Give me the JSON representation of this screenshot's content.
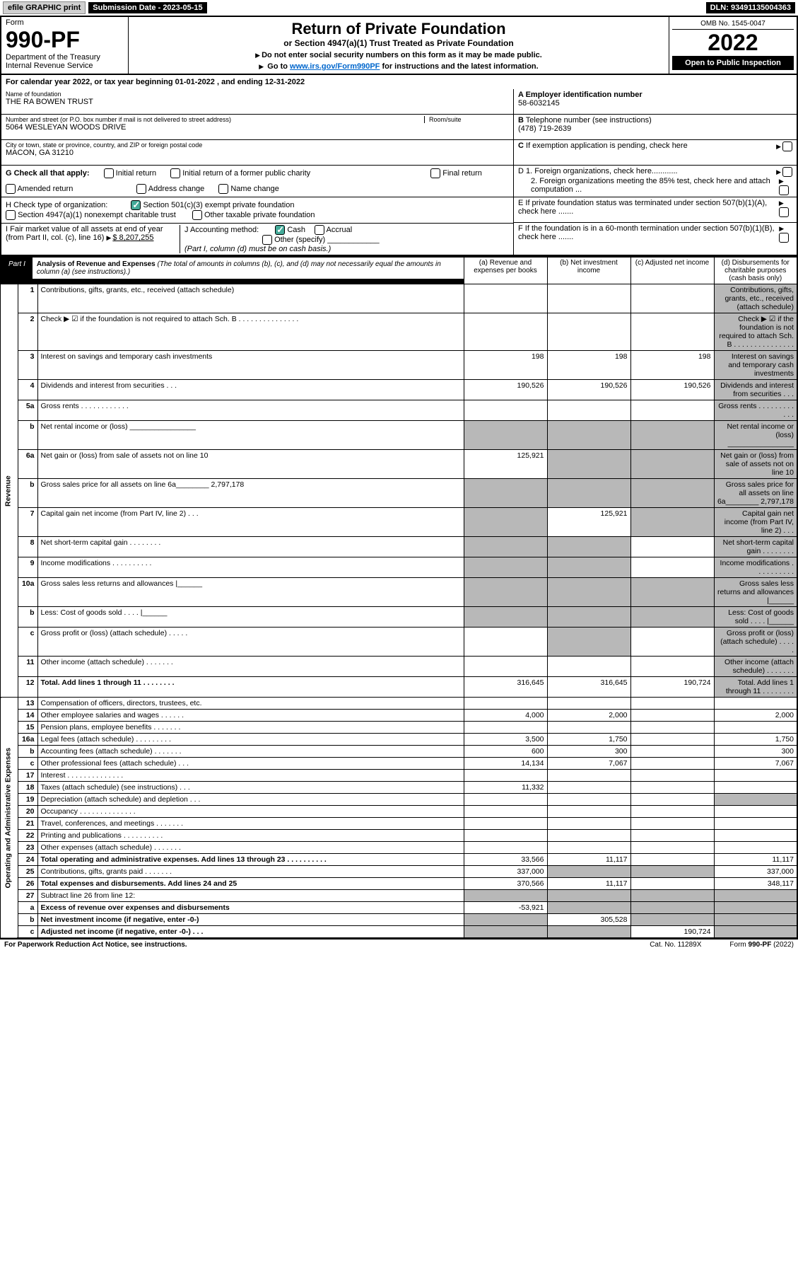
{
  "topbar": {
    "efile": "efile GRAPHIC print",
    "submission": "Submission Date - 2023-05-15",
    "dln": "DLN: 93491135004363"
  },
  "header": {
    "form_label": "Form",
    "form_no": "990-PF",
    "dept": "Department of the Treasury",
    "irs": "Internal Revenue Service",
    "title": "Return of Private Foundation",
    "subtitle": "or Section 4947(a)(1) Trust Treated as Private Foundation",
    "instr1": "Do not enter social security numbers on this form as it may be made public.",
    "instr2_pre": "Go to ",
    "instr2_link": "www.irs.gov/Form990PF",
    "instr2_post": " for instructions and the latest information.",
    "omb": "OMB No. 1545-0047",
    "year": "2022",
    "open": "Open to Public Inspection"
  },
  "calyear": "For calendar year 2022, or tax year beginning 01-01-2022                       , and ending 12-31-2022",
  "info": {
    "name_label": "Name of foundation",
    "name": "THE RA BOWEN TRUST",
    "addr_label": "Number and street (or P.O. box number if mail is not delivered to street address)",
    "addr": "5064 WESLEYAN WOODS DRIVE",
    "room_label": "Room/suite",
    "city_label": "City or town, state or province, country, and ZIP or foreign postal code",
    "city": "MACON, GA  31210",
    "ein_label": "A Employer identification number",
    "ein": "58-6032145",
    "tel_label": "B Telephone number (see instructions)",
    "tel": "(478) 719-2639",
    "c": "C If exemption application is pending, check here",
    "d1": "D 1. Foreign organizations, check here............",
    "d2": "2. Foreign organizations meeting the 85% test, check here and attach computation ...",
    "e": "E  If private foundation status was terminated under section 507(b)(1)(A), check here .......",
    "f": "F  If the foundation is in a 60-month termination under section 507(b)(1)(B), check here .......",
    "g_label": "G Check all that apply:",
    "g_opts": [
      "Initial return",
      "Initial return of a former public charity",
      "Final return",
      "Amended return",
      "Address change",
      "Name change"
    ],
    "h_label": "H Check type of organization:",
    "h_opts": [
      "Section 501(c)(3) exempt private foundation",
      "Section 4947(a)(1) nonexempt charitable trust",
      "Other taxable private foundation"
    ],
    "i_label": "I Fair market value of all assets at end of year (from Part II, col. (c), line 16)",
    "i_val": "$  8,207,255",
    "j_label": "J Accounting method:",
    "j_opts": [
      "Cash",
      "Accrual",
      "Other (specify)"
    ],
    "j_note": "(Part I, column (d) must be on cash basis.)"
  },
  "part1": {
    "tab": "Part I",
    "title": "Analysis of Revenue and Expenses",
    "title_note": " (The total of amounts in columns (b), (c), and (d) may not necessarily equal the amounts in column (a) (see instructions).)",
    "cols": [
      "(a)   Revenue and expenses per books",
      "(b)   Net investment income",
      "(c)   Adjusted net income",
      "(d)   Disbursements for charitable purposes (cash basis only)"
    ]
  },
  "sections": {
    "revenue": "Revenue",
    "opex": "Operating and Administrative Expenses"
  },
  "rows": [
    {
      "n": "1",
      "d": "Contributions, gifts, grants, etc., received (attach schedule)",
      "a": "",
      "b": "",
      "c": "",
      "sh": [
        "d"
      ]
    },
    {
      "n": "2",
      "d": "Check ▶ ☑ if the foundation is not required to attach Sch. B     .   .   .   .   .   .   .   .   .   .   .   .   .   .   .",
      "a": "",
      "b": "",
      "c": "",
      "sh": [
        "d"
      ]
    },
    {
      "n": "3",
      "d": "Interest on savings and temporary cash investments",
      "a": "198",
      "b": "198",
      "c": "198",
      "sh": [
        "d"
      ]
    },
    {
      "n": "4",
      "d": "Dividends and interest from securities    .   .   .",
      "a": "190,526",
      "b": "190,526",
      "c": "190,526",
      "sh": [
        "d"
      ]
    },
    {
      "n": "5a",
      "d": "Gross rents     .   .   .   .   .   .   .   .   .   .   .   .",
      "a": "",
      "b": "",
      "c": "",
      "sh": [
        "d"
      ]
    },
    {
      "n": "b",
      "d": "Net rental income or (loss)   ________________",
      "a": "",
      "b": "",
      "c": "",
      "sh": [
        "a",
        "b",
        "c",
        "d"
      ]
    },
    {
      "n": "6a",
      "d": "Net gain or (loss) from sale of assets not on line 10",
      "a": "125,921",
      "b": "",
      "c": "",
      "sh": [
        "b",
        "c",
        "d"
      ]
    },
    {
      "n": "b",
      "d": "Gross sales price for all assets on line 6a________ 2,797,178",
      "a": "",
      "b": "",
      "c": "",
      "sh": [
        "a",
        "b",
        "c",
        "d"
      ]
    },
    {
      "n": "7",
      "d": "Capital gain net income (from Part IV, line 2)   .   .   .",
      "a": "",
      "b": "125,921",
      "c": "",
      "sh": [
        "a",
        "c",
        "d"
      ]
    },
    {
      "n": "8",
      "d": "Net short-term capital gain  .   .   .   .   .   .   .   .",
      "a": "",
      "b": "",
      "c": "",
      "sh": [
        "a",
        "b",
        "d"
      ]
    },
    {
      "n": "9",
      "d": "Income modifications .   .   .   .   .   .   .   .   .   .",
      "a": "",
      "b": "",
      "c": "",
      "sh": [
        "a",
        "b",
        "d"
      ]
    },
    {
      "n": "10a",
      "d": "Gross sales less returns and allowances  |______",
      "a": "",
      "b": "",
      "c": "",
      "sh": [
        "a",
        "b",
        "c",
        "d"
      ]
    },
    {
      "n": "b",
      "d": "Less: Cost of goods sold     .   .   .   .   |______",
      "a": "",
      "b": "",
      "c": "",
      "sh": [
        "a",
        "b",
        "c",
        "d"
      ]
    },
    {
      "n": "c",
      "d": "Gross profit or (loss) (attach schedule)    .   .   .   .   .",
      "a": "",
      "b": "",
      "c": "",
      "sh": [
        "b",
        "d"
      ]
    },
    {
      "n": "11",
      "d": "Other income (attach schedule)    .   .   .   .   .   .   .",
      "a": "",
      "b": "",
      "c": "",
      "sh": [
        "d"
      ]
    },
    {
      "n": "12",
      "d": "Total. Add lines 1 through 11   .   .   .   .   .   .   .   .",
      "a": "316,645",
      "b": "316,645",
      "c": "190,724",
      "bold": true,
      "sh": [
        "d"
      ]
    },
    {
      "n": "13",
      "d": "Compensation of officers, directors, trustees, etc.",
      "a": "",
      "b": "",
      "c": "",
      "e": ""
    },
    {
      "n": "14",
      "d": "Other employee salaries and wages    .   .   .   .   .   .",
      "a": "4,000",
      "b": "2,000",
      "c": "",
      "e": "2,000"
    },
    {
      "n": "15",
      "d": "Pension plans, employee benefits  .   .   .   .   .   .   .",
      "a": "",
      "b": "",
      "c": "",
      "e": ""
    },
    {
      "n": "16a",
      "d": "Legal fees (attach schedule) .   .   .   .   .   .   .   .   .",
      "a": "3,500",
      "b": "1,750",
      "c": "",
      "e": "1,750"
    },
    {
      "n": "b",
      "d": "Accounting fees (attach schedule)  .   .   .   .   .   .   .",
      "a": "600",
      "b": "300",
      "c": "",
      "e": "300"
    },
    {
      "n": "c",
      "d": "Other professional fees (attach schedule)    .   .   .",
      "a": "14,134",
      "b": "7,067",
      "c": "",
      "e": "7,067"
    },
    {
      "n": "17",
      "d": "Interest  .   .   .   .   .   .   .   .   .   .   .   .   .   .",
      "a": "",
      "b": "",
      "c": "",
      "e": ""
    },
    {
      "n": "18",
      "d": "Taxes (attach schedule) (see instructions)    .   .   .",
      "a": "11,332",
      "b": "",
      "c": "",
      "e": ""
    },
    {
      "n": "19",
      "d": "Depreciation (attach schedule) and depletion    .   .   .",
      "a": "",
      "b": "",
      "c": "",
      "e": "",
      "sh": [
        "e"
      ]
    },
    {
      "n": "20",
      "d": "Occupancy .   .   .   .   .   .   .   .   .   .   .   .   .   .",
      "a": "",
      "b": "",
      "c": "",
      "e": ""
    },
    {
      "n": "21",
      "d": "Travel, conferences, and meetings  .   .   .   .   .   .   .",
      "a": "",
      "b": "",
      "c": "",
      "e": ""
    },
    {
      "n": "22",
      "d": "Printing and publications .   .   .   .   .   .   .   .   .   .",
      "a": "",
      "b": "",
      "c": "",
      "e": ""
    },
    {
      "n": "23",
      "d": "Other expenses (attach schedule)  .   .   .   .   .   .   .",
      "a": "",
      "b": "",
      "c": "",
      "e": ""
    },
    {
      "n": "24",
      "d": "Total operating and administrative expenses. Add lines 13 through 23   .   .   .   .   .   .   .   .   .   .",
      "a": "33,566",
      "b": "11,117",
      "c": "",
      "e": "11,117",
      "bold": true
    },
    {
      "n": "25",
      "d": "Contributions, gifts, grants paid     .   .   .   .   .   .   .",
      "a": "337,000",
      "b": "",
      "c": "",
      "e": "337,000",
      "sh": [
        "b",
        "c"
      ]
    },
    {
      "n": "26",
      "d": "Total expenses and disbursements. Add lines 24 and 25",
      "a": "370,566",
      "b": "11,117",
      "c": "",
      "e": "348,117",
      "bold": true
    },
    {
      "n": "27",
      "d": "Subtract line 26 from line 12:",
      "a": "",
      "b": "",
      "c": "",
      "e": "",
      "sh": [
        "a",
        "b",
        "c",
        "e"
      ]
    },
    {
      "n": "a",
      "d": "Excess of revenue over expenses and disbursements",
      "a": "-53,921",
      "b": "",
      "c": "",
      "e": "",
      "bold": true,
      "sh": [
        "b",
        "c",
        "e"
      ]
    },
    {
      "n": "b",
      "d": "Net investment income (if negative, enter -0-)",
      "a": "",
      "b": "305,528",
      "c": "",
      "e": "",
      "bold": true,
      "sh": [
        "a",
        "c",
        "e"
      ]
    },
    {
      "n": "c",
      "d": "Adjusted net income (if negative, enter -0-)   .   .   .",
      "a": "",
      "b": "",
      "c": "190,724",
      "e": "",
      "bold": true,
      "sh": [
        "a",
        "b",
        "e"
      ]
    }
  ],
  "footer": {
    "l": "For Paperwork Reduction Act Notice, see instructions.",
    "c": "Cat. No. 11289X",
    "r": "Form 990-PF (2022)"
  }
}
